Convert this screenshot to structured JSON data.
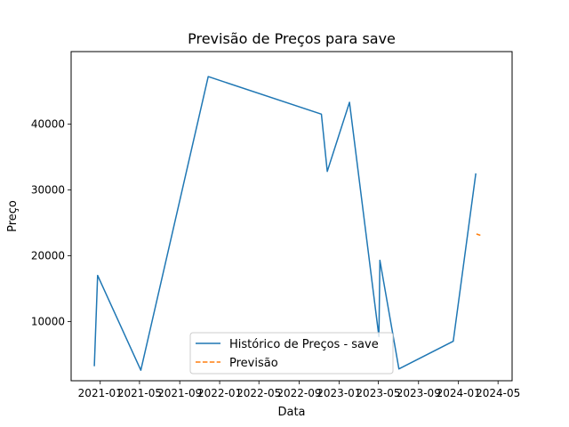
{
  "chart_data": {
    "type": "line",
    "title": "Previsão de Preços para save",
    "xlabel": "Data",
    "ylabel": "Preço",
    "x_axis_type": "date",
    "xlim": [
      "2020-10-04",
      "2024-06-13"
    ],
    "ylim": [
      1000,
      51000
    ],
    "x_ticks": [
      "2021-01",
      "2021-05",
      "2021-09",
      "2022-01",
      "2022-05",
      "2022-09",
      "2023-01",
      "2023-05",
      "2023-09",
      "2024-01",
      "2024-05"
    ],
    "y_ticks": [
      10000,
      20000,
      30000,
      40000
    ],
    "legend_position": "lower-center",
    "grid": false,
    "series": [
      {
        "name": "Histórico de Preços - save",
        "color": "#1f77b4",
        "style": "solid",
        "points": [
          [
            "2020-12-14",
            3200
          ],
          [
            "2020-12-24",
            17000
          ],
          [
            "2021-05-05",
            2600
          ],
          [
            "2021-11-27",
            47200
          ],
          [
            "2022-11-08",
            41500
          ],
          [
            "2022-11-26",
            32800
          ],
          [
            "2023-02-02",
            43300
          ],
          [
            "2023-05-03",
            7700
          ],
          [
            "2023-05-06",
            19300
          ],
          [
            "2023-07-03",
            2800
          ],
          [
            "2023-12-16",
            7000
          ],
          [
            "2024-02-23",
            32500
          ]
        ]
      },
      {
        "name": "Previsão",
        "color": "#ff7f0e",
        "style": "dashed",
        "points": [
          [
            "2024-02-25",
            23300
          ],
          [
            "2024-03-08",
            23100
          ]
        ]
      }
    ]
  }
}
